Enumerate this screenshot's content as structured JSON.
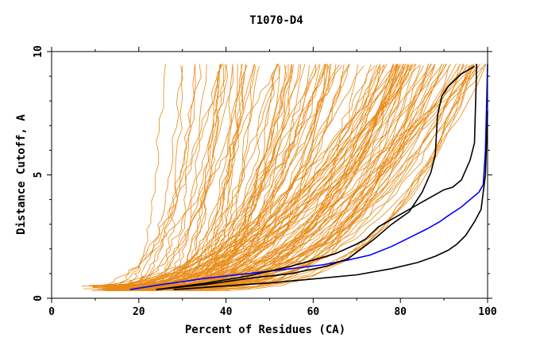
{
  "chart_data": {
    "type": "line",
    "title": "T1070-D4",
    "xlabel": "Percent of Residues (CA)",
    "ylabel": "Distance Cutoff, A",
    "xlim": [
      0,
      100
    ],
    "ylim": [
      0,
      10
    ],
    "x_ticks": [
      0,
      20,
      40,
      60,
      80,
      100
    ],
    "y_ticks": [
      0,
      5,
      10
    ],
    "grid": false,
    "legend": "none",
    "colors": {
      "background_models": "#e88a16",
      "reference": "#0000ff",
      "highlight": "#000000"
    },
    "background_model_count": 140,
    "series": [
      {
        "color": "#0000ff",
        "x": [
          18,
          25,
          35,
          45,
          55,
          62,
          68,
          73,
          78,
          82,
          86,
          89,
          91,
          94,
          96,
          98,
          99,
          99.5,
          100
        ],
        "y": [
          0.35,
          0.55,
          0.8,
          1.0,
          1.2,
          1.35,
          1.55,
          1.75,
          2.1,
          2.45,
          2.8,
          3.1,
          3.35,
          3.7,
          4.0,
          4.3,
          4.6,
          6.0,
          9.5
        ]
      },
      {
        "color": "#000000",
        "x": [
          24,
          35,
          45,
          55,
          65,
          70,
          72,
          75,
          80,
          85,
          88,
          90,
          92,
          94,
          96,
          97,
          97.5
        ],
        "y": [
          0.35,
          0.6,
          0.9,
          1.3,
          1.8,
          2.2,
          2.4,
          2.9,
          3.4,
          3.9,
          4.2,
          4.4,
          4.5,
          4.8,
          5.6,
          6.3,
          9.5
        ]
      },
      {
        "color": "#000000",
        "x": [
          24,
          35,
          45,
          55,
          63,
          68,
          71,
          74,
          78,
          82,
          85,
          87,
          88,
          88.5,
          89.5,
          91,
          94,
          97
        ],
        "y": [
          0.35,
          0.55,
          0.8,
          1.0,
          1.3,
          1.6,
          2.0,
          2.4,
          3.0,
          3.5,
          4.3,
          5.1,
          5.8,
          7.4,
          8.2,
          8.6,
          9.1,
          9.4
        ]
      },
      {
        "color": "#000000",
        "x": [
          28,
          40,
          50,
          60,
          70,
          78,
          84,
          88,
          91,
          93,
          95,
          97,
          98.5,
          99.5,
          100
        ],
        "y": [
          0.35,
          0.5,
          0.62,
          0.78,
          0.95,
          1.2,
          1.45,
          1.7,
          1.95,
          2.2,
          2.55,
          3.1,
          3.6,
          5.0,
          7.6
        ]
      }
    ]
  }
}
